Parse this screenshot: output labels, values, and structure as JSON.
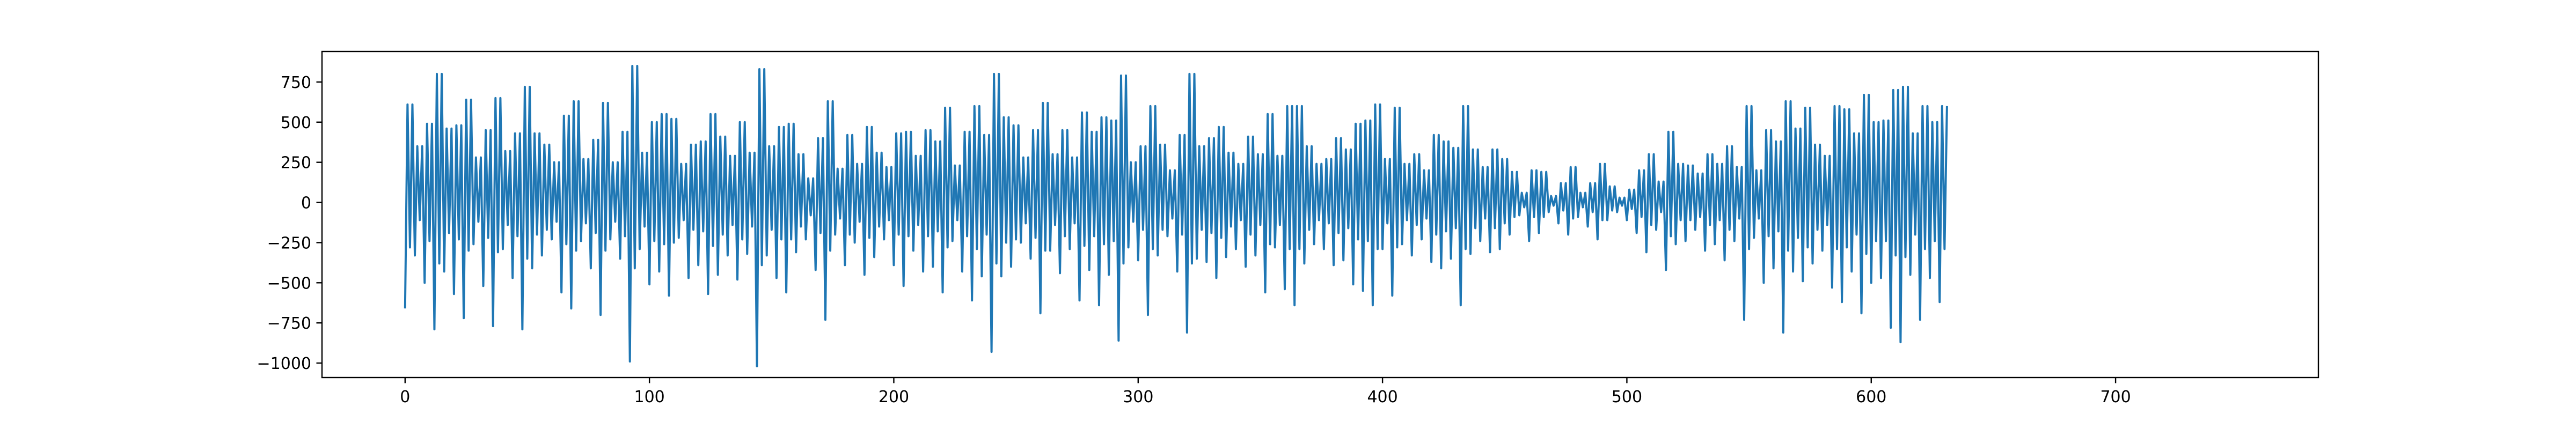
{
  "chart_data": {
    "type": "line",
    "title": "",
    "xlabel": "",
    "ylabel": "",
    "xlim": [
      -34,
      783
    ],
    "ylim": [
      -1090,
      940
    ],
    "x_ticks": [
      0,
      100,
      200,
      300,
      400,
      500,
      600,
      700
    ],
    "y_ticks": [
      -1000,
      -750,
      -500,
      -250,
      0,
      250,
      500,
      750
    ],
    "y_tick_labels": [
      "−1000",
      "−750",
      "−500",
      "−250",
      "0",
      "250",
      "500",
      "750"
    ],
    "grid": false,
    "legend": "none",
    "series": [
      {
        "color": "#1f77b4",
        "x_start": 0,
        "x_step": 1,
        "values": [
          -660,
          610,
          -280,
          610,
          -330,
          350,
          -110,
          350,
          -500,
          490,
          -240,
          490,
          -790,
          800,
          -380,
          800,
          -430,
          460,
          -190,
          460,
          -570,
          480,
          -230,
          480,
          -720,
          640,
          -300,
          640,
          -260,
          280,
          -120,
          280,
          -520,
          450,
          -220,
          450,
          -770,
          650,
          -310,
          650,
          -290,
          320,
          -140,
          320,
          -470,
          430,
          -210,
          430,
          -790,
          720,
          -350,
          720,
          -410,
          430,
          -200,
          430,
          -330,
          360,
          -170,
          360,
          -230,
          250,
          -120,
          250,
          -560,
          540,
          -260,
          540,
          -660,
          630,
          -300,
          630,
          -240,
          270,
          -130,
          270,
          -410,
          390,
          -190,
          390,
          -700,
          620,
          -300,
          620,
          -230,
          250,
          -120,
          250,
          -350,
          440,
          -210,
          440,
          -990,
          850,
          -410,
          850,
          -290,
          310,
          -150,
          310,
          -510,
          500,
          -240,
          500,
          -430,
          550,
          -260,
          550,
          -580,
          520,
          -250,
          520,
          -220,
          240,
          -110,
          240,
          -470,
          360,
          -170,
          360,
          -390,
          380,
          -180,
          380,
          -570,
          550,
          -270,
          550,
          -450,
          410,
          -200,
          410,
          -330,
          290,
          -140,
          290,
          -480,
          500,
          -230,
          500,
          -320,
          310,
          -150,
          310,
          -1020,
          830,
          -390,
          830,
          -330,
          350,
          -170,
          350,
          -470,
          470,
          -230,
          470,
          -560,
          490,
          -230,
          490,
          -310,
          300,
          -150,
          300,
          -230,
          150,
          -80,
          150,
          -420,
          400,
          -190,
          400,
          -730,
          630,
          -300,
          630,
          -200,
          210,
          -100,
          210,
          -390,
          420,
          -200,
          420,
          -250,
          240,
          -120,
          240,
          -450,
          470,
          -220,
          470,
          -340,
          310,
          -150,
          310,
          -230,
          220,
          -110,
          220,
          -390,
          430,
          -200,
          430,
          -520,
          440,
          -210,
          440,
          -300,
          290,
          -140,
          290,
          -430,
          450,
          -210,
          450,
          -400,
          380,
          -180,
          380,
          -560,
          590,
          -280,
          590,
          -240,
          230,
          -110,
          230,
          -430,
          440,
          -210,
          440,
          -610,
          600,
          -290,
          600,
          -460,
          420,
          -200,
          420,
          -930,
          800,
          -380,
          800,
          -460,
          530,
          -250,
          530,
          -400,
          480,
          -230,
          480,
          -250,
          280,
          -130,
          280,
          -350,
          450,
          -220,
          450,
          -690,
          620,
          -300,
          620,
          -300,
          300,
          -140,
          300,
          -440,
          450,
          -210,
          450,
          -290,
          280,
          -130,
          280,
          -610,
          560,
          -270,
          560,
          -420,
          440,
          -210,
          440,
          -640,
          530,
          -260,
          530,
          -450,
          510,
          -240,
          510,
          -860,
          790,
          -380,
          790,
          -280,
          250,
          -120,
          250,
          -360,
          350,
          -170,
          350,
          -700,
          600,
          -290,
          600,
          -330,
          360,
          -170,
          360,
          -210,
          200,
          -100,
          200,
          -430,
          420,
          -200,
          420,
          -810,
          800,
          -380,
          800,
          -350,
          350,
          -170,
          350,
          -370,
          400,
          -190,
          400,
          -470,
          470,
          -220,
          470,
          -340,
          310,
          -150,
          310,
          -290,
          240,
          -110,
          240,
          -400,
          410,
          -200,
          410,
          -330,
          300,
          -140,
          300,
          -560,
          550,
          -260,
          550,
          -280,
          290,
          -140,
          290,
          -540,
          600,
          -290,
          600,
          -640,
          600,
          -290,
          600,
          -380,
          350,
          -170,
          350,
          -260,
          240,
          -110,
          240,
          -290,
          270,
          -130,
          270,
          -390,
          400,
          -190,
          400,
          -360,
          330,
          -160,
          330,
          -510,
          490,
          -230,
          490,
          -550,
          510,
          -240,
          510,
          -640,
          610,
          -290,
          610,
          -290,
          270,
          -130,
          270,
          -580,
          590,
          -280,
          590,
          -260,
          240,
          -110,
          240,
          -330,
          300,
          -140,
          300,
          -230,
          200,
          -100,
          200,
          -370,
          420,
          -200,
          420,
          -410,
          380,
          -180,
          380,
          -350,
          340,
          -160,
          340,
          -640,
          600,
          -290,
          600,
          -320,
          330,
          -160,
          330,
          -240,
          220,
          -100,
          220,
          -310,
          330,
          -160,
          330,
          -290,
          270,
          -130,
          270,
          -200,
          190,
          -90,
          190,
          -80,
          60,
          -30,
          60,
          -240,
          200,
          -90,
          200,
          -190,
          190,
          -90,
          190,
          -60,
          40,
          -20,
          40,
          -130,
          120,
          -50,
          120,
          -200,
          220,
          -100,
          220,
          -90,
          60,
          -30,
          60,
          -150,
          120,
          -60,
          120,
          -230,
          240,
          -110,
          240,
          -110,
          100,
          -50,
          100,
          -60,
          30,
          -20,
          30,
          -110,
          80,
          -40,
          80,
          -190,
          200,
          -90,
          200,
          -310,
          300,
          -140,
          300,
          -170,
          130,
          -60,
          130,
          -420,
          440,
          -210,
          440,
          -260,
          240,
          -110,
          240,
          -240,
          230,
          -110,
          230,
          -170,
          180,
          -90,
          180,
          -300,
          300,
          -140,
          300,
          -260,
          240,
          -110,
          240,
          -360,
          350,
          -170,
          350,
          -240,
          220,
          -100,
          220,
          -730,
          600,
          -290,
          600,
          -220,
          200,
          -100,
          200,
          -500,
          450,
          -210,
          450,
          -410,
          380,
          -180,
          380,
          -810,
          630,
          -300,
          630,
          -430,
          460,
          -220,
          460,
          -490,
          590,
          -280,
          590,
          -380,
          360,
          -170,
          360,
          -300,
          290,
          -140,
          290,
          -530,
          600,
          -290,
          600,
          -620,
          580,
          -280,
          580,
          -430,
          430,
          -200,
          430,
          -690,
          670,
          -320,
          670,
          -500,
          500,
          -240,
          500,
          -470,
          510,
          -240,
          510,
          -780,
          700,
          -330,
          700,
          -870,
          720,
          -340,
          720,
          -450,
          430,
          -200,
          430,
          -730,
          600,
          -290,
          600,
          -470,
          500,
          -240,
          500,
          -620,
          600,
          -290,
          600
        ]
      }
    ]
  }
}
